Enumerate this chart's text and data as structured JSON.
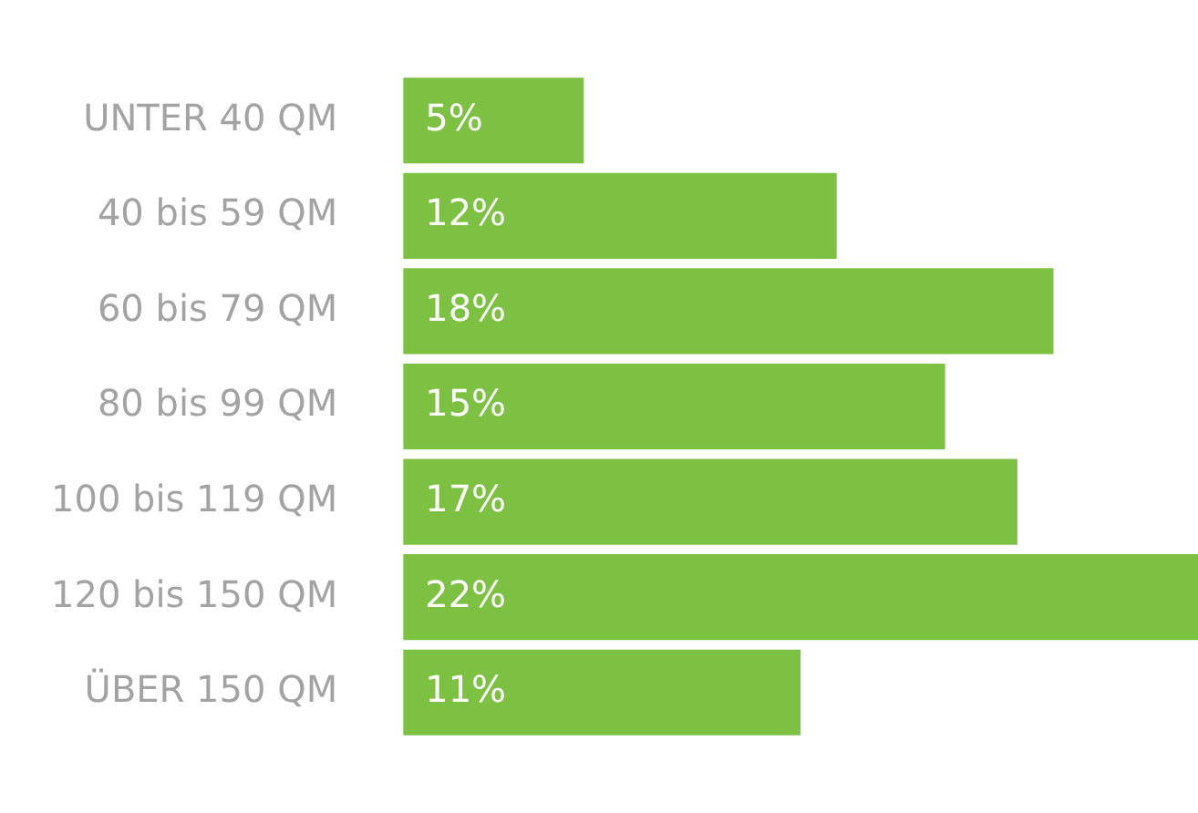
{
  "chart_data": {
    "type": "bar",
    "orientation": "horizontal",
    "categories": [
      "UNTER 40 QM",
      "40 bis 59 QM",
      "60 bis 79 QM",
      "80 bis 99 QM",
      "100 bis 119 QM",
      "120 bis 150 QM",
      "ÜBER 150 QM"
    ],
    "values": [
      5,
      12,
      18,
      15,
      17,
      22,
      11
    ],
    "value_labels": [
      "5%",
      "12%",
      "18%",
      "15%",
      "17%",
      "22%",
      "11%"
    ],
    "color": "#7dc142",
    "legend": false
  }
}
